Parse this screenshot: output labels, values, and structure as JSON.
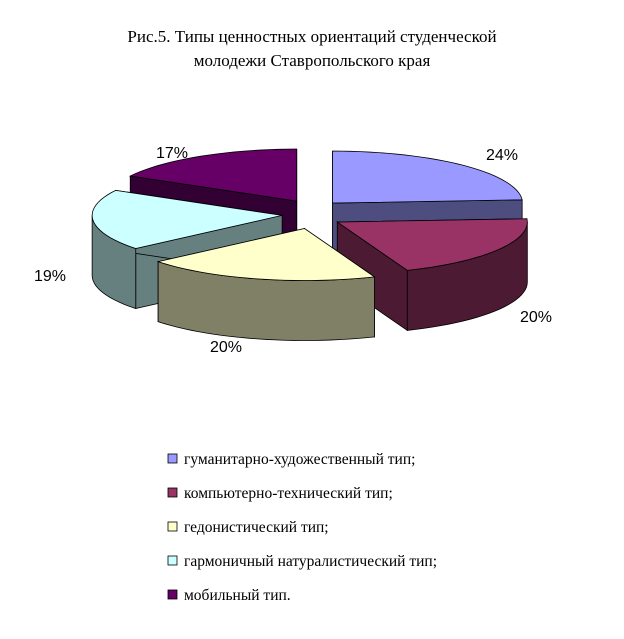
{
  "chart_data": {
    "type": "pie",
    "title": "Рис.5. Типы ценностных ориентаций студенческой молодежи Ставропольского края",
    "title_lines": [
      "Рис.5. Типы ценностных ориентаций студенческой",
      "молодежи Ставропольского края"
    ],
    "style": "3d-exploded",
    "legend_position": "bottom",
    "slices": [
      {
        "label": "гуманитарно-художественный тип;",
        "value": 24,
        "value_label": "24%",
        "color": "#9999FF",
        "side_color": "#4D4D80"
      },
      {
        "label": "компьютерно-технический тип;",
        "value": 20,
        "value_label": "20%",
        "color": "#993366",
        "side_color": "#4D1A33"
      },
      {
        "label": "гедонистический тип;",
        "value": 20,
        "value_label": "20%",
        "color": "#FFFFCC",
        "side_color": "#808066"
      },
      {
        "label": "гармоничный натуралистический тип;",
        "value": 19,
        "value_label": "19%",
        "color": "#CCFFFF",
        "side_color": "#668080"
      },
      {
        "label": "мобильный тип.",
        "value": 17,
        "value_label": "17%",
        "color": "#660066",
        "side_color": "#330033"
      }
    ]
  }
}
